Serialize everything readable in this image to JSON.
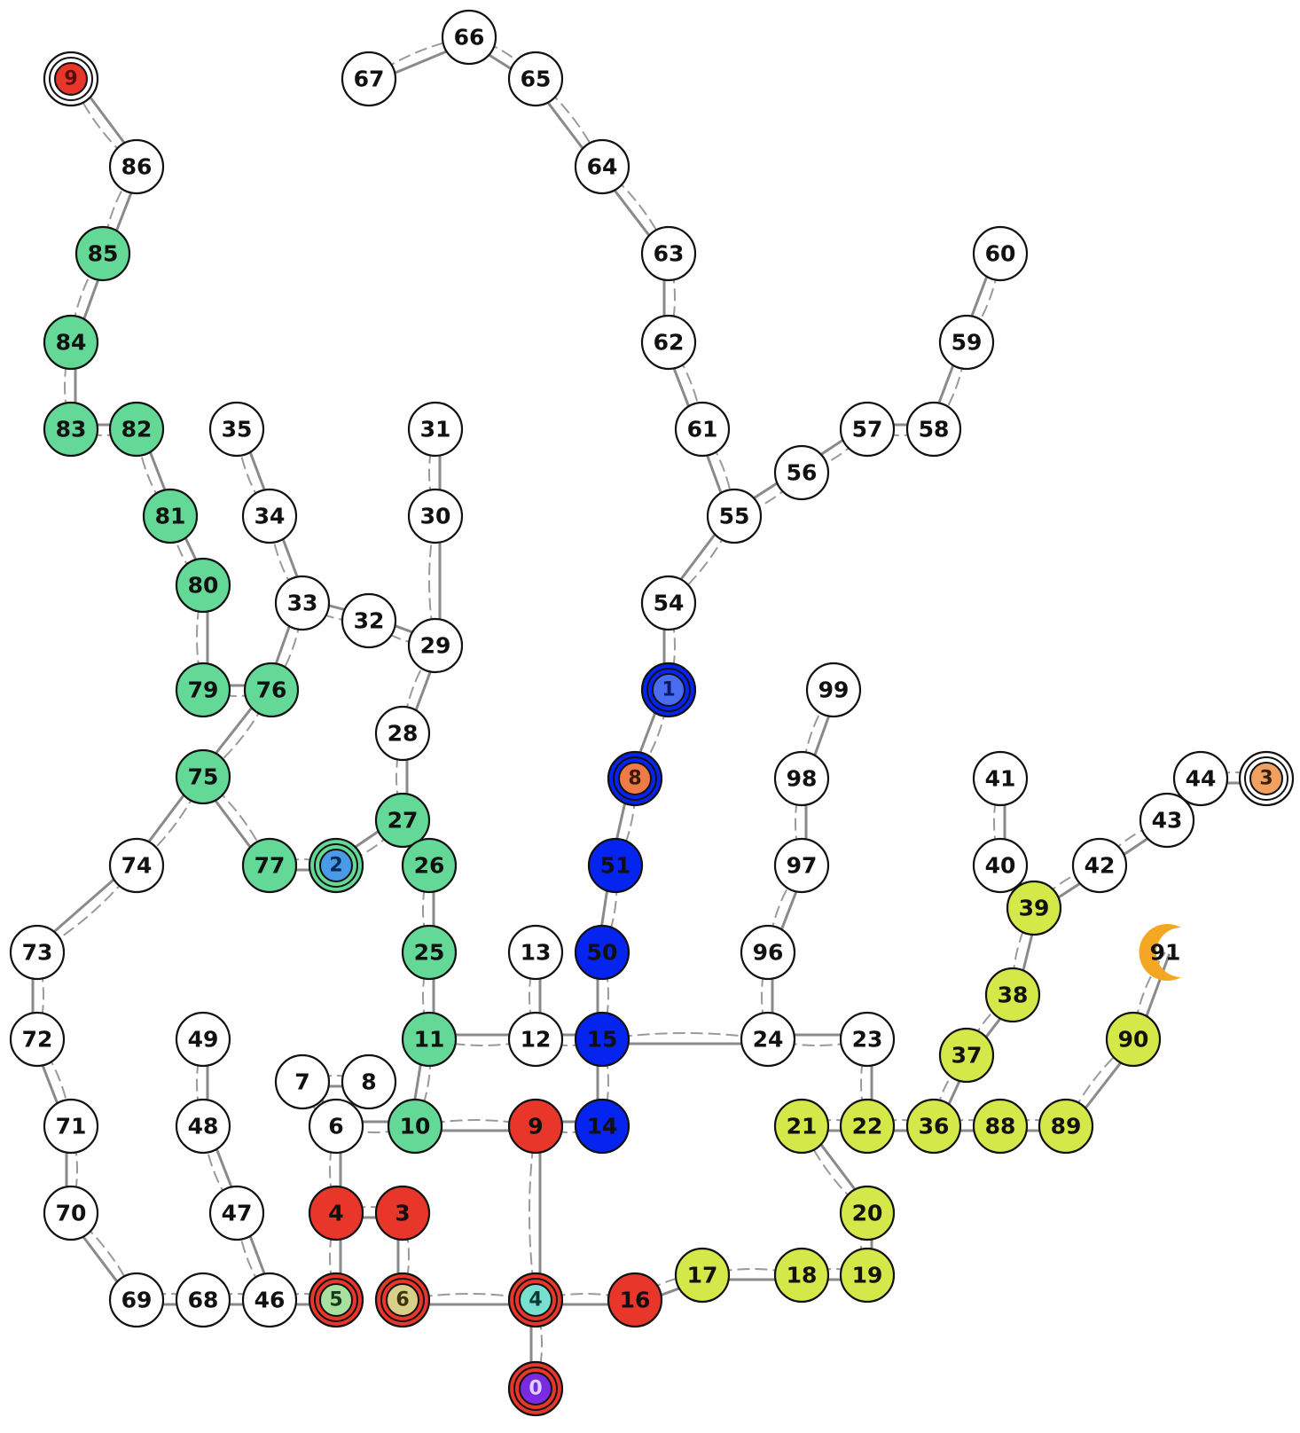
{
  "colors": {
    "white": "#ffffff",
    "green": "#64d896",
    "blue": "#0624f0",
    "red": "#e8362a",
    "yellow": "#d4e84a",
    "edge": "#8a8a8a",
    "orange": "#f5a623"
  },
  "nodes": [
    {
      "id": "66",
      "label": "66",
      "color": "white"
    },
    {
      "id": "67",
      "label": "67",
      "color": "white"
    },
    {
      "id": "65",
      "label": "65",
      "color": "white"
    },
    {
      "id": "64",
      "label": "64",
      "color": "white"
    },
    {
      "id": "63",
      "label": "63",
      "color": "white"
    },
    {
      "id": "62",
      "label": "62",
      "color": "white"
    },
    {
      "id": "61",
      "label": "61",
      "color": "white"
    },
    {
      "id": "60",
      "label": "60",
      "color": "white"
    },
    {
      "id": "59",
      "label": "59",
      "color": "white"
    },
    {
      "id": "58",
      "label": "58",
      "color": "white"
    },
    {
      "id": "57",
      "label": "57",
      "color": "white"
    },
    {
      "id": "56",
      "label": "56",
      "color": "white"
    },
    {
      "id": "55",
      "label": "55",
      "color": "white"
    },
    {
      "id": "54",
      "label": "54",
      "color": "white"
    },
    {
      "id": "86",
      "label": "86",
      "color": "white"
    },
    {
      "id": "85",
      "label": "85",
      "color": "green"
    },
    {
      "id": "84",
      "label": "84",
      "color": "green"
    },
    {
      "id": "83",
      "label": "83",
      "color": "green"
    },
    {
      "id": "82",
      "label": "82",
      "color": "green"
    },
    {
      "id": "81",
      "label": "81",
      "color": "green"
    },
    {
      "id": "80",
      "label": "80",
      "color": "green"
    },
    {
      "id": "79",
      "label": "79",
      "color": "green"
    },
    {
      "id": "76",
      "label": "76",
      "color": "green"
    },
    {
      "id": "75",
      "label": "75",
      "color": "green"
    },
    {
      "id": "77",
      "label": "77",
      "color": "green"
    },
    {
      "id": "74",
      "label": "74",
      "color": "white"
    },
    {
      "id": "73",
      "label": "73",
      "color": "white"
    },
    {
      "id": "72",
      "label": "72",
      "color": "white"
    },
    {
      "id": "71",
      "label": "71",
      "color": "white"
    },
    {
      "id": "70",
      "label": "70",
      "color": "white"
    },
    {
      "id": "69",
      "label": "69",
      "color": "white"
    },
    {
      "id": "68",
      "label": "68",
      "color": "white"
    },
    {
      "id": "46",
      "label": "46",
      "color": "white"
    },
    {
      "id": "47",
      "label": "47",
      "color": "white"
    },
    {
      "id": "48",
      "label": "48",
      "color": "white"
    },
    {
      "id": "49",
      "label": "49",
      "color": "white"
    },
    {
      "id": "35",
      "label": "35",
      "color": "white"
    },
    {
      "id": "34",
      "label": "34",
      "color": "white"
    },
    {
      "id": "33",
      "label": "33",
      "color": "white"
    },
    {
      "id": "32",
      "label": "32",
      "color": "white"
    },
    {
      "id": "31",
      "label": "31",
      "color": "white"
    },
    {
      "id": "30",
      "label": "30",
      "color": "white"
    },
    {
      "id": "29",
      "label": "29",
      "color": "white"
    },
    {
      "id": "28",
      "label": "28",
      "color": "white"
    },
    {
      "id": "27",
      "label": "27",
      "color": "green"
    },
    {
      "id": "26",
      "label": "26",
      "color": "green"
    },
    {
      "id": "25",
      "label": "25",
      "color": "green"
    },
    {
      "id": "11",
      "label": "11",
      "color": "green"
    },
    {
      "id": "10",
      "label": "10",
      "color": "green"
    },
    {
      "id": "n2",
      "label": "",
      "color": "green"
    },
    {
      "id": "7",
      "label": "7",
      "color": "white"
    },
    {
      "id": "8w",
      "label": "8",
      "color": "white"
    },
    {
      "id": "6w",
      "label": "6",
      "color": "white"
    },
    {
      "id": "4r",
      "label": "4",
      "color": "red"
    },
    {
      "id": "3r",
      "label": "3",
      "color": "red"
    },
    {
      "id": "n5",
      "label": "",
      "color": "red"
    },
    {
      "id": "n6",
      "label": "",
      "color": "red"
    },
    {
      "id": "n4",
      "label": "",
      "color": "red"
    },
    {
      "id": "n0",
      "label": "",
      "color": "red"
    },
    {
      "id": "9r",
      "label": "9",
      "color": "red"
    },
    {
      "id": "16",
      "label": "16",
      "color": "red"
    },
    {
      "id": "13",
      "label": "13",
      "color": "white"
    },
    {
      "id": "12",
      "label": "12",
      "color": "white"
    },
    {
      "id": "15",
      "label": "15",
      "color": "blue"
    },
    {
      "id": "14",
      "label": "14",
      "color": "blue"
    },
    {
      "id": "50",
      "label": "50",
      "color": "blue"
    },
    {
      "id": "51",
      "label": "51",
      "color": "blue"
    },
    {
      "id": "n8",
      "label": "",
      "color": "blue"
    },
    {
      "id": "n1",
      "label": "",
      "color": "blue"
    },
    {
      "id": "99",
      "label": "99",
      "color": "white"
    },
    {
      "id": "98",
      "label": "98",
      "color": "white"
    },
    {
      "id": "97",
      "label": "97",
      "color": "white"
    },
    {
      "id": "96",
      "label": "96",
      "color": "white"
    },
    {
      "id": "24",
      "label": "24",
      "color": "white"
    },
    {
      "id": "23",
      "label": "23",
      "color": "white"
    },
    {
      "id": "22",
      "label": "22",
      "color": "yellow"
    },
    {
      "id": "21",
      "label": "21",
      "color": "yellow"
    },
    {
      "id": "20",
      "label": "20",
      "color": "yellow"
    },
    {
      "id": "19",
      "label": "19",
      "color": "yellow"
    },
    {
      "id": "18",
      "label": "18",
      "color": "yellow"
    },
    {
      "id": "17",
      "label": "17",
      "color": "yellow"
    },
    {
      "id": "36",
      "label": "36",
      "color": "yellow"
    },
    {
      "id": "37",
      "label": "37",
      "color": "yellow"
    },
    {
      "id": "38",
      "label": "38",
      "color": "yellow"
    },
    {
      "id": "39",
      "label": "39",
      "color": "yellow"
    },
    {
      "id": "88",
      "label": "88",
      "color": "yellow"
    },
    {
      "id": "89",
      "label": "89",
      "color": "yellow"
    },
    {
      "id": "90",
      "label": "90",
      "color": "yellow"
    },
    {
      "id": "41",
      "label": "41",
      "color": "white"
    },
    {
      "id": "40",
      "label": "40",
      "color": "white"
    },
    {
      "id": "42",
      "label": "42",
      "color": "white"
    },
    {
      "id": "43",
      "label": "43",
      "color": "white"
    },
    {
      "id": "44",
      "label": "44",
      "color": "white"
    },
    {
      "id": "n9top",
      "label": "",
      "color": "white"
    },
    {
      "id": "n3",
      "label": "",
      "color": "white"
    },
    {
      "id": "91",
      "label": "91",
      "color": "white"
    }
  ],
  "agents": [
    {
      "node": "n9top",
      "label": "9",
      "fill": "#e8362a",
      "text": "#5a1010"
    },
    {
      "node": "n1",
      "label": "1",
      "fill": "#4a6cf0",
      "text": "#0a1a6a"
    },
    {
      "node": "n8",
      "label": "8",
      "fill": "#ee7a48",
      "text": "#3a1a08"
    },
    {
      "node": "n2",
      "label": "2",
      "fill": "#4a9ae8",
      "text": "#082a5a"
    },
    {
      "node": "n5",
      "label": "5",
      "fill": "#a8e0a0",
      "text": "#1a3a1a"
    },
    {
      "node": "n6",
      "label": "6",
      "fill": "#d8d088",
      "text": "#3a3410"
    },
    {
      "node": "n4",
      "label": "4",
      "fill": "#78e0d0",
      "text": "#0a3a34"
    },
    {
      "node": "n0",
      "label": "0",
      "fill": "#7a2ae0",
      "text": "#e0d0ff"
    },
    {
      "node": "n3",
      "label": "3",
      "fill": "#f0a060",
      "text": "#3a2008"
    }
  ],
  "edges": [
    [
      "67",
      "66"
    ],
    [
      "66",
      "65"
    ],
    [
      "65",
      "64"
    ],
    [
      "64",
      "63"
    ],
    [
      "63",
      "62"
    ],
    [
      "62",
      "61"
    ],
    [
      "61",
      "55"
    ],
    [
      "60",
      "59"
    ],
    [
      "59",
      "58"
    ],
    [
      "58",
      "57"
    ],
    [
      "57",
      "56"
    ],
    [
      "56",
      "55"
    ],
    [
      "55",
      "54"
    ],
    [
      "54",
      "n1"
    ],
    [
      "n1",
      "n8"
    ],
    [
      "n8",
      "51"
    ],
    [
      "51",
      "50"
    ],
    [
      "50",
      "15"
    ],
    [
      "15",
      "14"
    ],
    [
      "15",
      "12"
    ],
    [
      "15",
      "24"
    ],
    [
      "14",
      "9r"
    ],
    [
      "12",
      "13"
    ],
    [
      "12",
      "11"
    ],
    [
      "11",
      "25"
    ],
    [
      "11",
      "10"
    ],
    [
      "10",
      "9r"
    ],
    [
      "10",
      "6w"
    ],
    [
      "25",
      "26"
    ],
    [
      "26",
      "27"
    ],
    [
      "27",
      "n2"
    ],
    [
      "27",
      "28"
    ],
    [
      "28",
      "29"
    ],
    [
      "29",
      "30"
    ],
    [
      "29",
      "32"
    ],
    [
      "30",
      "31"
    ],
    [
      "32",
      "33"
    ],
    [
      "33",
      "34"
    ],
    [
      "34",
      "35"
    ],
    [
      "33",
      "76"
    ],
    [
      "76",
      "79"
    ],
    [
      "76",
      "75"
    ],
    [
      "79",
      "80"
    ],
    [
      "80",
      "81"
    ],
    [
      "81",
      "82"
    ],
    [
      "82",
      "83"
    ],
    [
      "83",
      "84"
    ],
    [
      "84",
      "85"
    ],
    [
      "85",
      "86"
    ],
    [
      "86",
      "n9top"
    ],
    [
      "75",
      "77"
    ],
    [
      "77",
      "n2"
    ],
    [
      "75",
      "74"
    ],
    [
      "74",
      "73"
    ],
    [
      "73",
      "72"
    ],
    [
      "72",
      "71"
    ],
    [
      "71",
      "70"
    ],
    [
      "70",
      "69"
    ],
    [
      "69",
      "68"
    ],
    [
      "68",
      "46"
    ],
    [
      "46",
      "47"
    ],
    [
      "47",
      "48"
    ],
    [
      "48",
      "49"
    ],
    [
      "46",
      "n5"
    ],
    [
      "n5",
      "4r"
    ],
    [
      "4r",
      "3r"
    ],
    [
      "4r",
      "6w"
    ],
    [
      "3r",
      "n6"
    ],
    [
      "6w",
      "7"
    ],
    [
      "7",
      "8w"
    ],
    [
      "n6",
      "n4"
    ],
    [
      "n4",
      "9r"
    ],
    [
      "n4",
      "n0"
    ],
    [
      "n4",
      "16"
    ],
    [
      "16",
      "17"
    ],
    [
      "17",
      "18"
    ],
    [
      "18",
      "19"
    ],
    [
      "19",
      "20"
    ],
    [
      "20",
      "21"
    ],
    [
      "21",
      "22"
    ],
    [
      "22",
      "23"
    ],
    [
      "23",
      "24"
    ],
    [
      "24",
      "96"
    ],
    [
      "96",
      "97"
    ],
    [
      "97",
      "98"
    ],
    [
      "98",
      "99"
    ],
    [
      "22",
      "36"
    ],
    [
      "36",
      "37"
    ],
    [
      "37",
      "38"
    ],
    [
      "38",
      "39"
    ],
    [
      "39",
      "40"
    ],
    [
      "40",
      "41"
    ],
    [
      "39",
      "42"
    ],
    [
      "42",
      "43"
    ],
    [
      "43",
      "44"
    ],
    [
      "44",
      "n3"
    ],
    [
      "36",
      "88"
    ],
    [
      "88",
      "89"
    ],
    [
      "89",
      "90"
    ],
    [
      "90",
      "91"
    ]
  ]
}
